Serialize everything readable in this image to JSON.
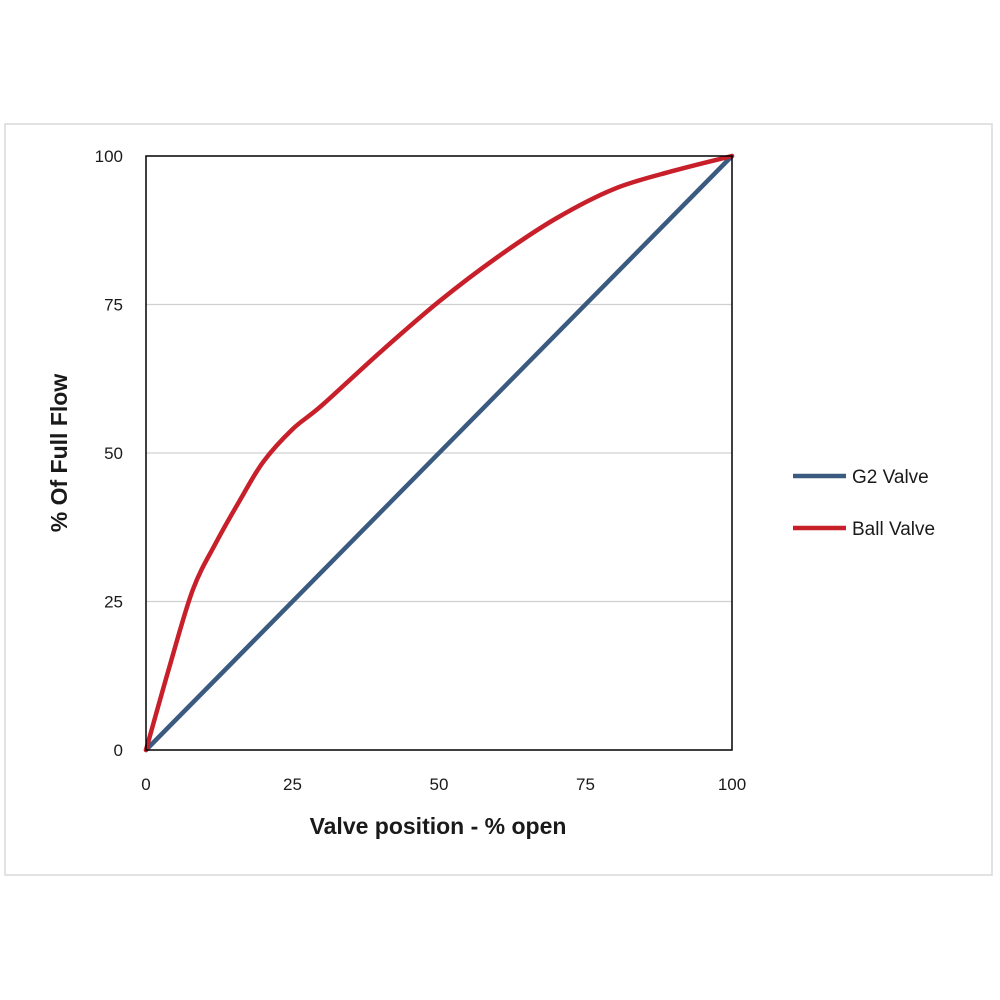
{
  "chart_data": {
    "type": "line",
    "title": "",
    "xlabel": "Valve position - % open",
    "ylabel": "% Of Full Flow",
    "xlim": [
      0,
      100
    ],
    "ylim": [
      0,
      100
    ],
    "x_ticks": [
      "0",
      "25",
      "50",
      "75",
      "100"
    ],
    "y_ticks": [
      "0",
      "25",
      "50",
      "75",
      "100"
    ],
    "grid": "horizontal",
    "legend_position": "right",
    "series": [
      {
        "name": "G2 Valve",
        "color": "#3a5a80",
        "x": [
          0,
          100
        ],
        "y": [
          0,
          100
        ]
      },
      {
        "name": "Ball Valve",
        "color": "#c8202a",
        "x": [
          0,
          4,
          8,
          12,
          16,
          20,
          25,
          30,
          40,
          50,
          60,
          70,
          80,
          90,
          100
        ],
        "y": [
          0,
          14,
          27,
          35,
          42,
          48.5,
          54,
          58,
          67,
          75.5,
          83,
          89.5,
          94.5,
          97.5,
          100
        ]
      }
    ]
  }
}
